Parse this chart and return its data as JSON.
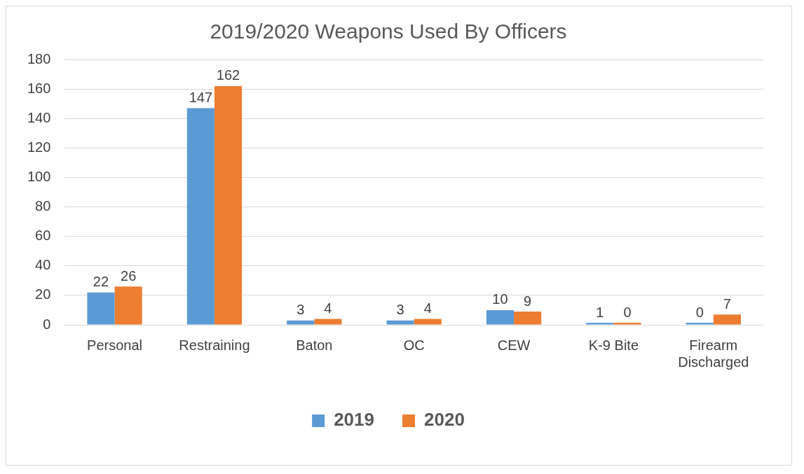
{
  "chart_data": {
    "type": "bar",
    "title": "2019/2020 Weapons Used By Officers",
    "categories": [
      "Personal",
      "Restraining",
      "Baton",
      "OC",
      "CEW",
      "K-9 Bite",
      "Firearm Discharged"
    ],
    "series": [
      {
        "name": "2019",
        "color": "#5b9bd5",
        "values": [
          22,
          147,
          3,
          3,
          10,
          1,
          0
        ]
      },
      {
        "name": "2020",
        "color": "#ed7d31",
        "values": [
          26,
          162,
          4,
          4,
          9,
          0,
          7
        ]
      }
    ],
    "ylim": [
      0,
      180
    ],
    "yticks": [
      0,
      20,
      40,
      60,
      80,
      100,
      120,
      140,
      160,
      180
    ],
    "grid": "y",
    "legend": "bottom",
    "data_labels": true
  }
}
